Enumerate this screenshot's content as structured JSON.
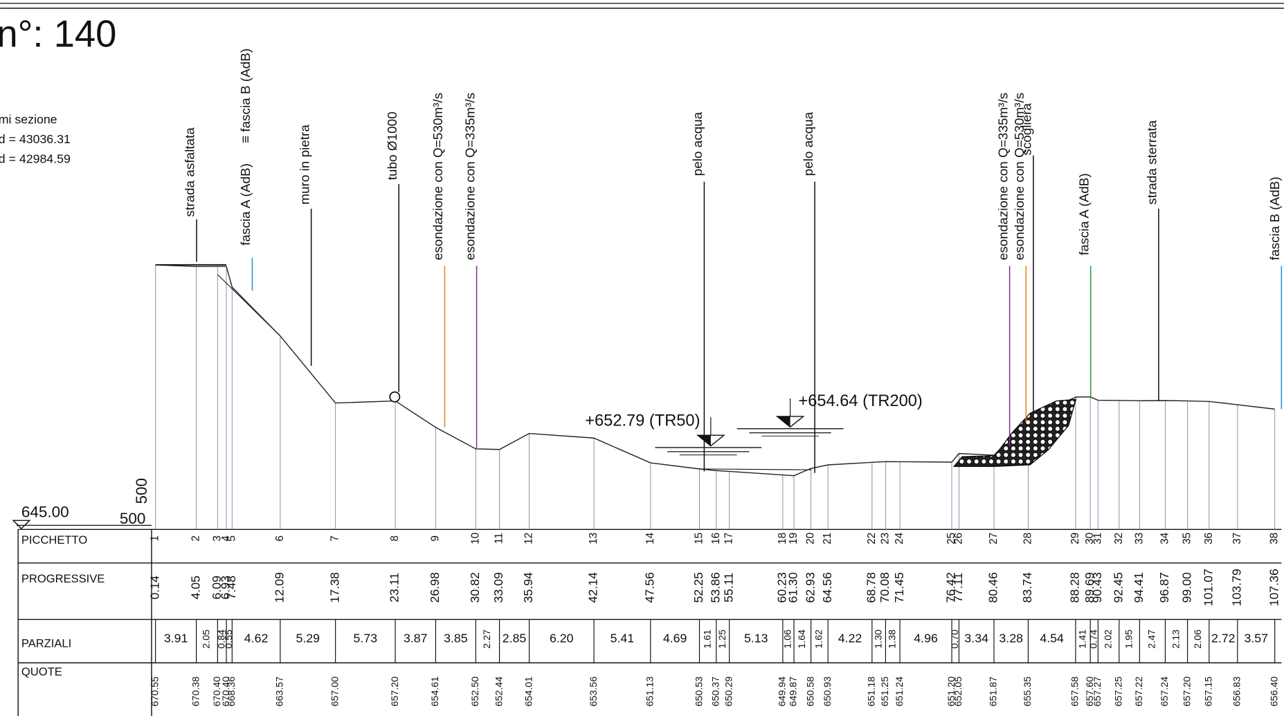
{
  "header": {
    "title": "n°: 140",
    "info": [
      "mi sezione",
      "d = 43036.31",
      "d = 42984.59"
    ]
  },
  "datum": {
    "label": "645.00",
    "scale_labels": [
      "500",
      "500"
    ]
  },
  "annotations": [
    {
      "text": "strada asfaltata",
      "color": "#111111"
    },
    {
      "text": "fascia A (AdB)",
      "color": "#2a9a3a"
    },
    {
      "text": "≡  fascia B (AdB)",
      "color": "#1f8fd0"
    },
    {
      "text": "muro in pietra",
      "color": "#111111"
    },
    {
      "text": "tubo Ø1000",
      "color": "#111111"
    },
    {
      "text": "esondazione con Q=530m³/s",
      "color": "#e8821e"
    },
    {
      "text": "esondazione con Q=335m³/s",
      "color": "#8a2a9a"
    },
    {
      "text": "pelo acqua",
      "color": "#111111"
    },
    {
      "text": "pelo acqua",
      "color": "#111111"
    },
    {
      "text": "esondazione con Q=335m³/s",
      "color": "#8a2a9a"
    },
    {
      "text": "esondazione con Q=530m³/s",
      "color": "#e8821e"
    },
    {
      "text": "scogliera",
      "color": "#111111"
    },
    {
      "text": "fascia A (AdB)",
      "color": "#2a9a3a"
    },
    {
      "text": "strada sterrata",
      "color": "#111111"
    },
    {
      "text": "fascia B (AdB)",
      "color": "#1f8fd0"
    }
  ],
  "water_levels": [
    {
      "label": "+652.79 (TR50)",
      "elevation": 652.79
    },
    {
      "label": "+654.64 (TR200)",
      "elevation": 654.64
    }
  ],
  "table": {
    "rows": [
      {
        "label": "PICCHETTO",
        "values": [
          1,
          2,
          3,
          4,
          5,
          6,
          7,
          8,
          9,
          10,
          11,
          12,
          13,
          14,
          15,
          16,
          17,
          18,
          19,
          20,
          21,
          22,
          23,
          24,
          25,
          26,
          27,
          28,
          29,
          30,
          31,
          32,
          33,
          34,
          35,
          36,
          37,
          38
        ]
      },
      {
        "label": "PROGRESSIVE",
        "values": [
          "0.14",
          "4.05",
          "6.09",
          "6.93",
          "7.48",
          "12.09",
          "17.38",
          "23.11",
          "26.98",
          "30.82",
          "33.09",
          "35.94",
          "42.14",
          "47.56",
          "52.25",
          "53.86",
          "55.11",
          "60.23",
          "61.30",
          "62.93",
          "64.56",
          "68.78",
          "70.08",
          "71.45",
          "76.42",
          "77.11",
          "80.46",
          "83.74",
          "88.28",
          "89.69",
          "90.43",
          "92.45",
          "94.41",
          "96.87",
          "99.00",
          "101.07",
          "103.79",
          "107.36"
        ]
      },
      {
        "label": "PARZIALI",
        "values": [
          "3.91",
          "2.05",
          "0.84",
          "0.55",
          "4.62",
          "5.29",
          "5.73",
          "3.87",
          "3.85",
          "2.27",
          "2.85",
          "6.20",
          "5.41",
          "4.69",
          "1.61",
          "1.25",
          "5.13",
          "1.06",
          "1.64",
          "1.62",
          "4.22",
          "1.30",
          "1.38",
          "4.96",
          "0.70",
          "3.34",
          "3.28",
          "4.54",
          "1.41",
          "0.74",
          "2.02",
          "1.95",
          "2.47",
          "2.13",
          "2.06",
          "2.72",
          "3.57"
        ]
      },
      {
        "label": "QUOTE",
        "values": [
          "670.55",
          "670.38",
          "670.40",
          "670.40",
          "668.36",
          "663.57",
          "657.00",
          "657.20",
          "654.61",
          "652.50",
          "652.44",
          "654.01",
          "653.56",
          "651.13",
          "650.53",
          "650.37",
          "650.29",
          "649.94",
          "649.87",
          "650.58",
          "650.93",
          "651.18",
          "651.25",
          "651.24",
          "651.20",
          "652.05",
          "651.87",
          "655.35",
          "657.58",
          "657.60",
          "657.27",
          "657.25",
          "657.22",
          "657.24",
          "657.20",
          "657.15",
          "656.83",
          "656.40"
        ]
      }
    ]
  }
}
